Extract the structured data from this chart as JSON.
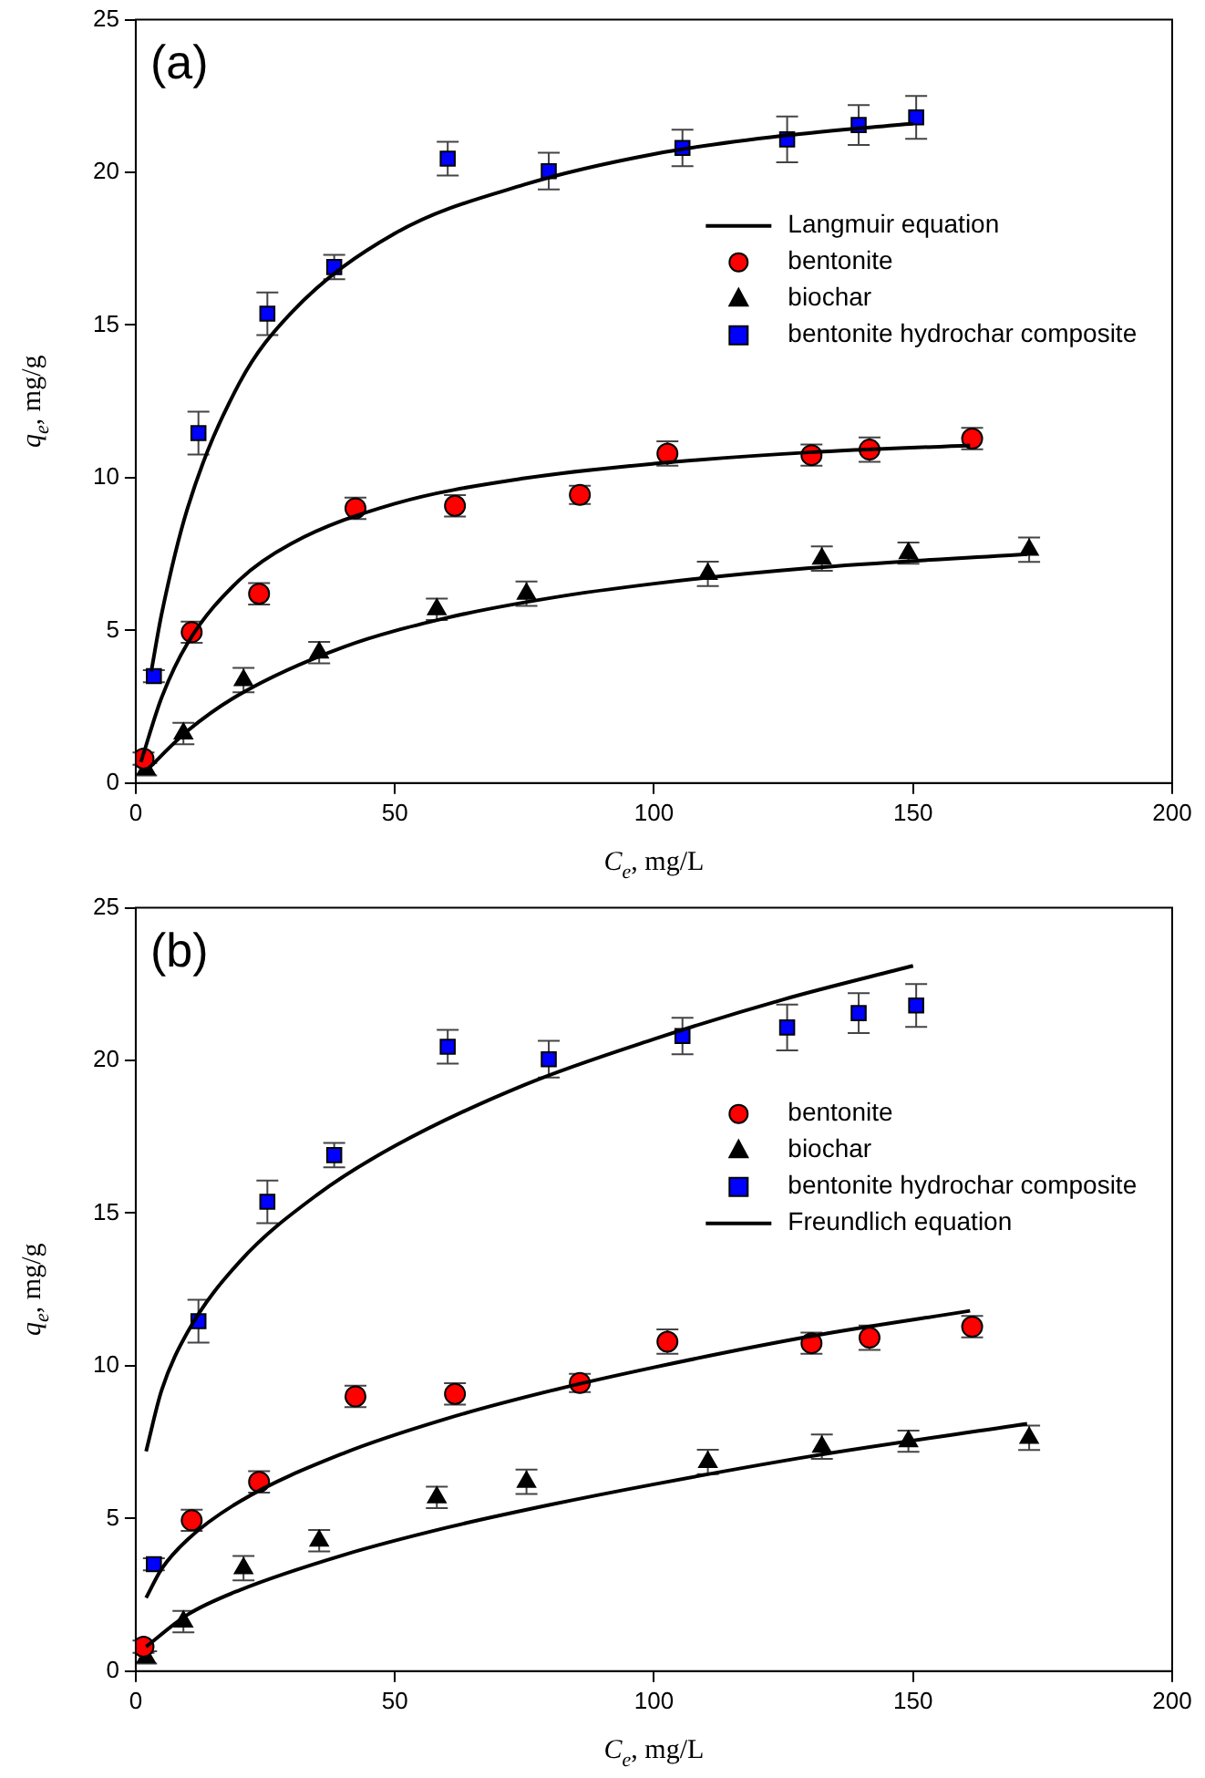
{
  "chart_data": [
    {
      "type": "scatter",
      "title": "(a)",
      "xlabel": "C$_{e}$, mg/L",
      "ylabel": "q$_{e}$, mg/g",
      "xlim": [
        0,
        200
      ],
      "xticks": [
        0,
        50,
        100,
        150,
        200
      ],
      "ylim": [
        0,
        25
      ],
      "yticks": [
        0,
        5,
        10,
        15,
        20,
        25
      ],
      "grid": false,
      "legend": "right",
      "series": [
        {
          "name": "Langmuir equation",
          "type": "line",
          "marker": "none",
          "line_style": "solid",
          "color": "#000000",
          "x": [
            3,
            5,
            10,
            20,
            30,
            50,
            75,
            100,
            125,
            150
          ],
          "values": [
            3.66,
            5.54,
            9.0,
            13.1,
            15.4,
            18.0,
            19.6,
            20.6,
            21.2,
            21.6
          ]
        },
        {
          "type": "line",
          "marker": "none",
          "line_style": "solid",
          "color": "#000000",
          "x": [
            1,
            5,
            10,
            20,
            30,
            50,
            75,
            100,
            130,
            161
          ],
          "values": [
            0.69,
            2.8,
            4.58,
            6.65,
            7.84,
            9.15,
            9.98,
            10.46,
            10.83,
            11.06
          ]
        },
        {
          "type": "line",
          "marker": "none",
          "line_style": "solid",
          "color": "#000000",
          "x": [
            2,
            10,
            20,
            40,
            60,
            80,
            100,
            130,
            172
          ],
          "values": [
            0.4,
            1.71,
            2.9,
            4.45,
            5.41,
            6.06,
            6.53,
            7.04,
            7.5
          ]
        },
        {
          "name": "bentonite",
          "type": "scatter",
          "marker": "circle",
          "color": "#ff0000",
          "x": [
            1.5,
            10.8,
            23.8,
            42.4,
            61.6,
            85.7,
            102.6,
            130.4,
            141.6,
            161.4
          ],
          "values": [
            0.8,
            4.94,
            6.2,
            9.0,
            9.08,
            9.44,
            10.79,
            10.74,
            10.92,
            11.28
          ],
          "errors": [
            0.2,
            0.35,
            0.35,
            0.35,
            0.35,
            0.3,
            0.4,
            0.35,
            0.4,
            0.35
          ]
        },
        {
          "name": "biochar",
          "type": "scatter",
          "marker": "triangle",
          "color": "#000000",
          "x": [
            2,
            9.2,
            20.8,
            35.4,
            58.1,
            75.4,
            110.4,
            132.4,
            149.1,
            172.4
          ],
          "values": [
            0.45,
            1.62,
            3.37,
            4.27,
            5.69,
            6.2,
            6.85,
            7.35,
            7.53,
            7.64
          ],
          "errors": [
            0.2,
            0.35,
            0.4,
            0.35,
            0.35,
            0.4,
            0.4,
            0.4,
            0.35,
            0.4
          ]
        },
        {
          "name": "bentonite hydrochar composite",
          "type": "scatter",
          "marker": "square",
          "color": "#0000ff",
          "x": [
            3.5,
            12.1,
            25.4,
            38.3,
            60.2,
            79.7,
            105.5,
            125.7,
            139.5,
            150.6
          ],
          "values": [
            3.5,
            11.46,
            15.37,
            16.9,
            20.45,
            20.04,
            20.8,
            21.08,
            21.55,
            21.8
          ],
          "errors": [
            0.2,
            0.7,
            0.7,
            0.4,
            0.55,
            0.6,
            0.6,
            0.75,
            0.65,
            0.7
          ]
        }
      ]
    },
    {
      "type": "scatter",
      "title": "(b)",
      "xlabel": "C$_{e}$, mg/L",
      "ylabel": "q$_{e}$, mg/g",
      "xlim": [
        0,
        200
      ],
      "xticks": [
        0,
        50,
        100,
        150,
        200
      ],
      "ylim": [
        0,
        25
      ],
      "yticks": [
        0,
        5,
        10,
        15,
        20,
        25
      ],
      "grid": false,
      "legend": "right",
      "series": [
        {
          "name": "bentonite",
          "type": "scatter",
          "marker": "circle",
          "color": "#ff0000",
          "x": [
            1.5,
            10.8,
            23.8,
            42.4,
            61.6,
            85.7,
            102.6,
            130.4,
            141.6,
            161.4
          ],
          "values": [
            0.8,
            4.94,
            6.2,
            9.0,
            9.08,
            9.44,
            10.79,
            10.74,
            10.92,
            11.28
          ],
          "errors": [
            0.2,
            0.35,
            0.35,
            0.35,
            0.35,
            0.3,
            0.4,
            0.35,
            0.4,
            0.35
          ]
        },
        {
          "name": "biochar",
          "type": "scatter",
          "marker": "triangle",
          "color": "#000000",
          "x": [
            2,
            9.2,
            20.8,
            35.4,
            58.1,
            75.4,
            110.4,
            132.4,
            149.1,
            172.4
          ],
          "values": [
            0.45,
            1.62,
            3.37,
            4.27,
            5.69,
            6.2,
            6.85,
            7.35,
            7.53,
            7.64
          ],
          "errors": [
            0.2,
            0.35,
            0.4,
            0.35,
            0.35,
            0.4,
            0.4,
            0.4,
            0.35,
            0.4
          ]
        },
        {
          "name": "bentonite hydrochar composite",
          "type": "scatter",
          "marker": "square",
          "color": "#0000ff",
          "x": [
            3.5,
            12.1,
            25.4,
            38.3,
            60.2,
            79.7,
            105.5,
            125.7,
            139.5,
            150.6
          ],
          "values": [
            3.5,
            11.46,
            15.37,
            16.9,
            20.45,
            20.04,
            20.8,
            21.08,
            21.55,
            21.8
          ],
          "errors": [
            0.2,
            0.7,
            0.7,
            0.4,
            0.55,
            0.6,
            0.6,
            0.75,
            0.65,
            0.7
          ]
        },
        {
          "name": "Freundlich equation",
          "type": "line",
          "marker": "none",
          "line_style": "solid",
          "color": "#000000",
          "x": [
            2,
            5,
            10,
            20,
            35,
            50,
            75,
            100,
            125,
            150
          ],
          "values": [
            7.2,
            9.2,
            11.1,
            13.4,
            15.6,
            17.2,
            19.2,
            20.7,
            22.0,
            23.1
          ]
        },
        {
          "type": "line",
          "marker": "none",
          "line_style": "solid",
          "color": "#000000",
          "x": [
            2,
            5,
            10,
            20,
            40,
            60,
            80,
            100,
            130,
            161
          ],
          "values": [
            2.4,
            3.35,
            4.31,
            5.55,
            7.13,
            8.27,
            9.18,
            9.95,
            10.96,
            11.8
          ]
        },
        {
          "type": "line",
          "marker": "none",
          "line_style": "solid",
          "color": "#000000",
          "x": [
            2,
            10,
            20,
            40,
            60,
            80,
            100,
            130,
            172
          ],
          "values": [
            0.8,
            1.85,
            2.65,
            3.8,
            4.7,
            5.45,
            6.12,
            7.03,
            8.1
          ]
        }
      ]
    }
  ]
}
